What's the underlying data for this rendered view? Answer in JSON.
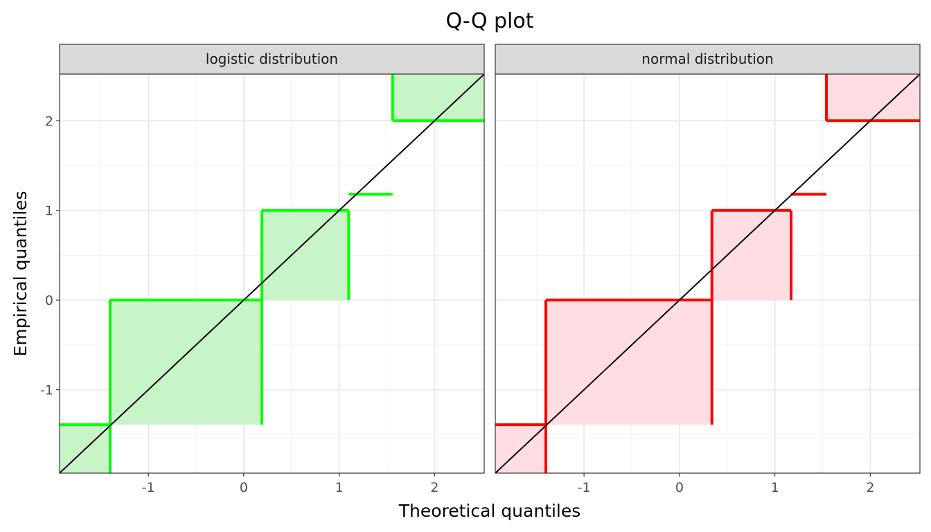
{
  "chart_data": {
    "type": "line",
    "title": "Q-Q plot",
    "xlabel": "Theoretical quantiles",
    "ylabel": "Empirical quantiles",
    "xlim": [
      -1.93,
      2.52
    ],
    "ylim": [
      -1.93,
      2.52
    ],
    "xticks": [
      -1,
      0,
      1,
      2
    ],
    "yticks": [
      -1,
      0,
      1,
      2
    ],
    "xtick_labels": [
      "-1",
      "0",
      "1",
      "2"
    ],
    "ytick_labels": [
      "-1",
      "0",
      "1",
      "2"
    ],
    "grid": true,
    "reference_line": {
      "slope": 1,
      "intercept": 0,
      "color": "#000000"
    },
    "panels": [
      {
        "label": "logistic distribution",
        "line_color": "#00ff00",
        "fill_color": "#c8f5c8",
        "segments": [
          {
            "x": [
              -1.93,
              -1.4
            ],
            "y": -1.39
          },
          {
            "x": [
              -1.4,
              0.19
            ],
            "y": 0.0
          },
          {
            "x": [
              0.19,
              1.1
            ],
            "y": 1.0
          },
          {
            "x": [
              1.1,
              1.56
            ],
            "y": 1.18
          },
          {
            "x": [
              1.56,
              2.52
            ],
            "y": 2.0
          }
        ],
        "rectangles": [
          {
            "x": [
              -1.93,
              -1.4
            ],
            "y": [
              -1.93,
              -1.39
            ]
          },
          {
            "x": [
              -1.4,
              0.19
            ],
            "y": [
              -1.39,
              0.0
            ]
          },
          {
            "x": [
              0.19,
              1.1
            ],
            "y": [
              0.0,
              1.0
            ]
          },
          {
            "x": [
              1.56,
              2.52
            ],
            "y": [
              2.0,
              2.52
            ]
          }
        ]
      },
      {
        "label": "normal distribution",
        "line_color": "#ff0000",
        "fill_color": "#ffdde3",
        "segments": [
          {
            "x": [
              -1.93,
              -1.4
            ],
            "y": -1.39
          },
          {
            "x": [
              -1.4,
              0.34
            ],
            "y": 0.0
          },
          {
            "x": [
              0.34,
              1.17
            ],
            "y": 1.0
          },
          {
            "x": [
              1.17,
              1.54
            ],
            "y": 1.18
          },
          {
            "x": [
              1.54,
              2.52
            ],
            "y": 2.0
          }
        ],
        "rectangles": [
          {
            "x": [
              -1.93,
              -1.4
            ],
            "y": [
              -1.93,
              -1.39
            ]
          },
          {
            "x": [
              -1.4,
              0.34
            ],
            "y": [
              -1.39,
              0.0
            ]
          },
          {
            "x": [
              0.34,
              1.17
            ],
            "y": [
              0.0,
              1.0
            ]
          },
          {
            "x": [
              1.54,
              2.52
            ],
            "y": [
              2.0,
              2.52
            ]
          }
        ]
      }
    ]
  }
}
